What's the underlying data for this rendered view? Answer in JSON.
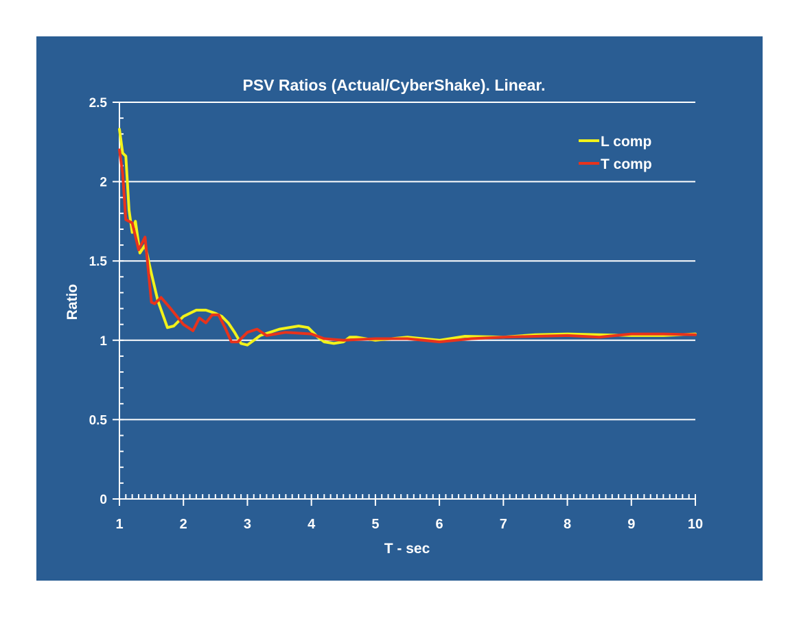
{
  "chart_data": {
    "type": "line",
    "title": "PSV Ratios (Actual/CyberShake). Linear.",
    "xlabel": "T - sec",
    "ylabel": "Ratio",
    "xlim": [
      1,
      10
    ],
    "ylim": [
      0,
      2.5
    ],
    "xticks": [
      "1",
      "2",
      "3",
      "4",
      "5",
      "6",
      "7",
      "8",
      "9",
      "10"
    ],
    "yticks": [
      "0",
      "0.5",
      "1",
      "1.5",
      "2",
      "2.5"
    ],
    "grid": "horizontal",
    "legend": "top-right",
    "series": [
      {
        "name": "L comp",
        "color": "#f2f21a",
        "x": [
          1.0,
          1.05,
          1.1,
          1.15,
          1.2,
          1.25,
          1.32,
          1.4,
          1.5,
          1.6,
          1.75,
          1.85,
          2.0,
          2.2,
          2.35,
          2.5,
          2.6,
          2.7,
          2.8,
          2.9,
          3.0,
          3.1,
          3.2,
          3.5,
          3.8,
          3.95,
          4.1,
          4.2,
          4.35,
          4.5,
          4.6,
          4.7,
          5.0,
          5.5,
          6.0,
          6.4,
          7.0,
          7.5,
          8.0,
          8.5,
          9.0,
          9.5,
          10.0
        ],
        "y": [
          2.33,
          2.18,
          2.16,
          1.82,
          1.68,
          1.75,
          1.55,
          1.6,
          1.42,
          1.25,
          1.08,
          1.09,
          1.15,
          1.19,
          1.19,
          1.17,
          1.15,
          1.11,
          1.05,
          0.98,
          0.97,
          1.0,
          1.03,
          1.07,
          1.09,
          1.08,
          1.02,
          0.99,
          0.98,
          0.99,
          1.02,
          1.02,
          1.0,
          1.02,
          1.0,
          1.025,
          1.02,
          1.035,
          1.04,
          1.035,
          1.03,
          1.03,
          1.04
        ]
      },
      {
        "name": "T comp",
        "color": "#e8331c",
        "x": [
          1.0,
          1.05,
          1.1,
          1.15,
          1.2,
          1.3,
          1.4,
          1.5,
          1.55,
          1.65,
          1.8,
          2.0,
          2.15,
          2.25,
          2.35,
          2.45,
          2.55,
          2.65,
          2.75,
          2.85,
          3.0,
          3.15,
          3.3,
          3.6,
          4.0,
          4.2,
          4.5,
          5.0,
          5.5,
          6.0,
          6.5,
          7.0,
          7.5,
          8.0,
          8.5,
          9.0,
          9.5,
          10.0
        ],
        "y": [
          2.2,
          2.05,
          1.76,
          1.75,
          1.74,
          1.57,
          1.65,
          1.24,
          1.23,
          1.27,
          1.2,
          1.1,
          1.06,
          1.14,
          1.11,
          1.16,
          1.16,
          1.08,
          0.99,
          0.99,
          1.05,
          1.07,
          1.03,
          1.05,
          1.04,
          1.01,
          1.0,
          1.01,
          1.01,
          0.99,
          1.01,
          1.02,
          1.025,
          1.03,
          1.02,
          1.04,
          1.04,
          1.035
        ]
      }
    ]
  }
}
